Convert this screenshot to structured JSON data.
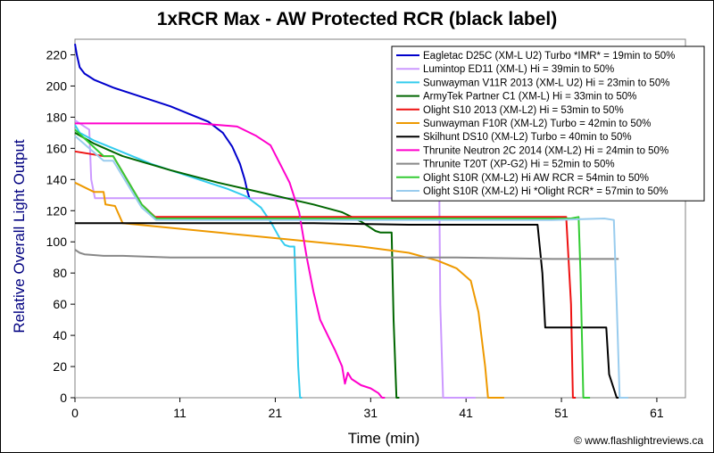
{
  "chart_data": {
    "type": "line",
    "title": "1xRCR Max - AW Protected RCR (black label)",
    "xlabel": "Time (min)",
    "ylabel": "Relative Overall Light Output",
    "credit": "© www.flashlightreviews.ca",
    "xlim": [
      0,
      64
    ],
    "ylim": [
      0,
      230
    ],
    "xticks": [
      0,
      11,
      21,
      31,
      41,
      51,
      61
    ],
    "yticks": [
      0,
      20,
      40,
      60,
      80,
      100,
      120,
      140,
      160,
      180,
      200,
      220
    ],
    "grid": false,
    "legend_position": "top-right",
    "series": [
      {
        "name": "Eagletac D25C (XM-L U2) Turbo *IMR* = 19min to 50%",
        "color": "#0000cc",
        "x": [
          0,
          0.2,
          0.5,
          1,
          2,
          4,
          6,
          8,
          10,
          12,
          14,
          15.5,
          16.5,
          17.3,
          17.8,
          18.1,
          18.3
        ],
        "y": [
          227,
          220,
          212,
          208,
          204,
          199,
          195,
          191,
          187,
          182,
          177,
          170,
          161,
          150,
          140,
          132,
          128
        ]
      },
      {
        "name": "Lumintop ED11 (XM-L) Hi = 39min to 50%",
        "color": "#cc99ff",
        "x": [
          0,
          1.5,
          1.7,
          2.1,
          5,
          15,
          25,
          35,
          37,
          38.2,
          38.3,
          38.6,
          40,
          42
        ],
        "y": [
          178,
          172,
          140,
          128,
          128,
          128,
          128,
          128,
          127,
          127,
          60,
          0,
          0,
          0
        ]
      },
      {
        "name": "Sunwayman V11R 2013 (XM-L U2) Hi = 23min to 50%",
        "color": "#33ccee",
        "x": [
          0,
          0.5,
          2,
          4,
          6,
          8,
          10,
          12,
          14,
          16,
          18,
          19.5,
          20.5,
          21.5,
          22,
          22.5,
          23,
          23.2,
          23.4,
          23.6,
          23.8
        ],
        "y": [
          175,
          170,
          165,
          160,
          155,
          150,
          146,
          142,
          138,
          134,
          129,
          122,
          113,
          102,
          98,
          97,
          97,
          60,
          20,
          0,
          0
        ]
      },
      {
        "name": "ArmyTek Partner C1 (XM-L) Hi = 33min to 50%",
        "color": "#006600",
        "x": [
          0,
          2,
          5,
          10,
          15,
          20,
          25,
          28,
          30,
          31.5,
          32,
          33.2,
          33.4,
          33.7,
          34
        ],
        "y": [
          170,
          163,
          155,
          146,
          138,
          131,
          124,
          119,
          113,
          107,
          106,
          106,
          50,
          0,
          0
        ]
      },
      {
        "name": "Olight S10 2013 (XM-L2) Hi = 53min to 50%",
        "color": "#ee1111",
        "x": [
          0,
          2,
          3,
          4,
          7,
          8.4,
          9,
          15,
          25,
          35,
          45,
          51.5,
          52,
          52.2,
          52.5
        ],
        "y": [
          158,
          156,
          155,
          155,
          124,
          116,
          116,
          116,
          116,
          116,
          116,
          116,
          60,
          0,
          0
        ]
      },
      {
        "name": "Sunwayman F10R (XM-L2) Turbo = 42min to 50%",
        "color": "#ee9900",
        "x": [
          0,
          2,
          3,
          3.2,
          4.2,
          5,
          10,
          20,
          30,
          35,
          38,
          40,
          41.5,
          42.3,
          43,
          43.3,
          45
        ],
        "y": [
          138,
          132,
          132,
          124,
          123,
          112,
          109,
          103,
          97,
          93,
          88,
          83,
          75,
          55,
          20,
          0,
          0
        ]
      },
      {
        "name": "Skilhunt DS10 (XM-L2) Turbo = 40min to 50%",
        "color": "#000000",
        "x": [
          0,
          5,
          15,
          25,
          35,
          45,
          48.5,
          49,
          49.3,
          55,
          55.7,
          56,
          56.8,
          57
        ],
        "y": [
          112,
          112,
          112,
          112,
          111,
          111,
          111,
          80,
          45,
          45,
          45,
          15,
          0,
          0
        ]
      },
      {
        "name": "Thrunite Neutron 2C 2014 (XM-L2) Hi = 24min to 50%",
        "color": "#ff00cc",
        "x": [
          0,
          5,
          10,
          13,
          15,
          17,
          19,
          20.5,
          21.5,
          22.5,
          23.5,
          24.3,
          25,
          25.7,
          26.5,
          27.3,
          28,
          28.3,
          28.6,
          29,
          30,
          31,
          31.8,
          32.2,
          32.5
        ],
        "y": [
          176,
          176,
          176,
          176,
          175,
          174,
          168,
          162,
          150,
          138,
          119,
          90,
          68,
          50,
          40,
          30,
          20,
          9,
          16,
          12,
          8,
          6,
          3,
          0,
          0
        ]
      },
      {
        "name": "Thrunite T20T (XP-G2) Hi = 52min to 50%",
        "color": "#888888",
        "x": [
          0,
          0.5,
          1,
          3,
          5,
          10,
          20,
          30,
          40,
          50,
          55,
          57
        ],
        "y": [
          95,
          93,
          92,
          91,
          91,
          90,
          90,
          90,
          90,
          89,
          89,
          89
        ]
      },
      {
        "name": "Olight S10R (XM-L2) Hi AW RCR = 54min to 50%",
        "color": "#33cc33",
        "x": [
          0,
          3,
          4,
          7,
          8.5,
          15,
          25,
          35,
          45,
          52,
          52.8,
          53,
          53.3,
          53.6,
          54
        ],
        "y": [
          172,
          155,
          155,
          124,
          115,
          115,
          115,
          115,
          115,
          115,
          116,
          80,
          0,
          0,
          0
        ]
      },
      {
        "name": "Olight S10R (XM-L2) Hi *Olight RCR* = 57min to 50%",
        "color": "#99ccee",
        "x": [
          0,
          3,
          4,
          7,
          8.5,
          15,
          25,
          35,
          45,
          50,
          55.5,
          56.5,
          56.8,
          57.1,
          57.4,
          58
        ],
        "y": [
          168,
          152,
          152,
          122,
          114,
          114,
          114,
          114,
          114,
          114,
          115,
          114,
          60,
          0,
          0,
          0
        ]
      }
    ]
  }
}
